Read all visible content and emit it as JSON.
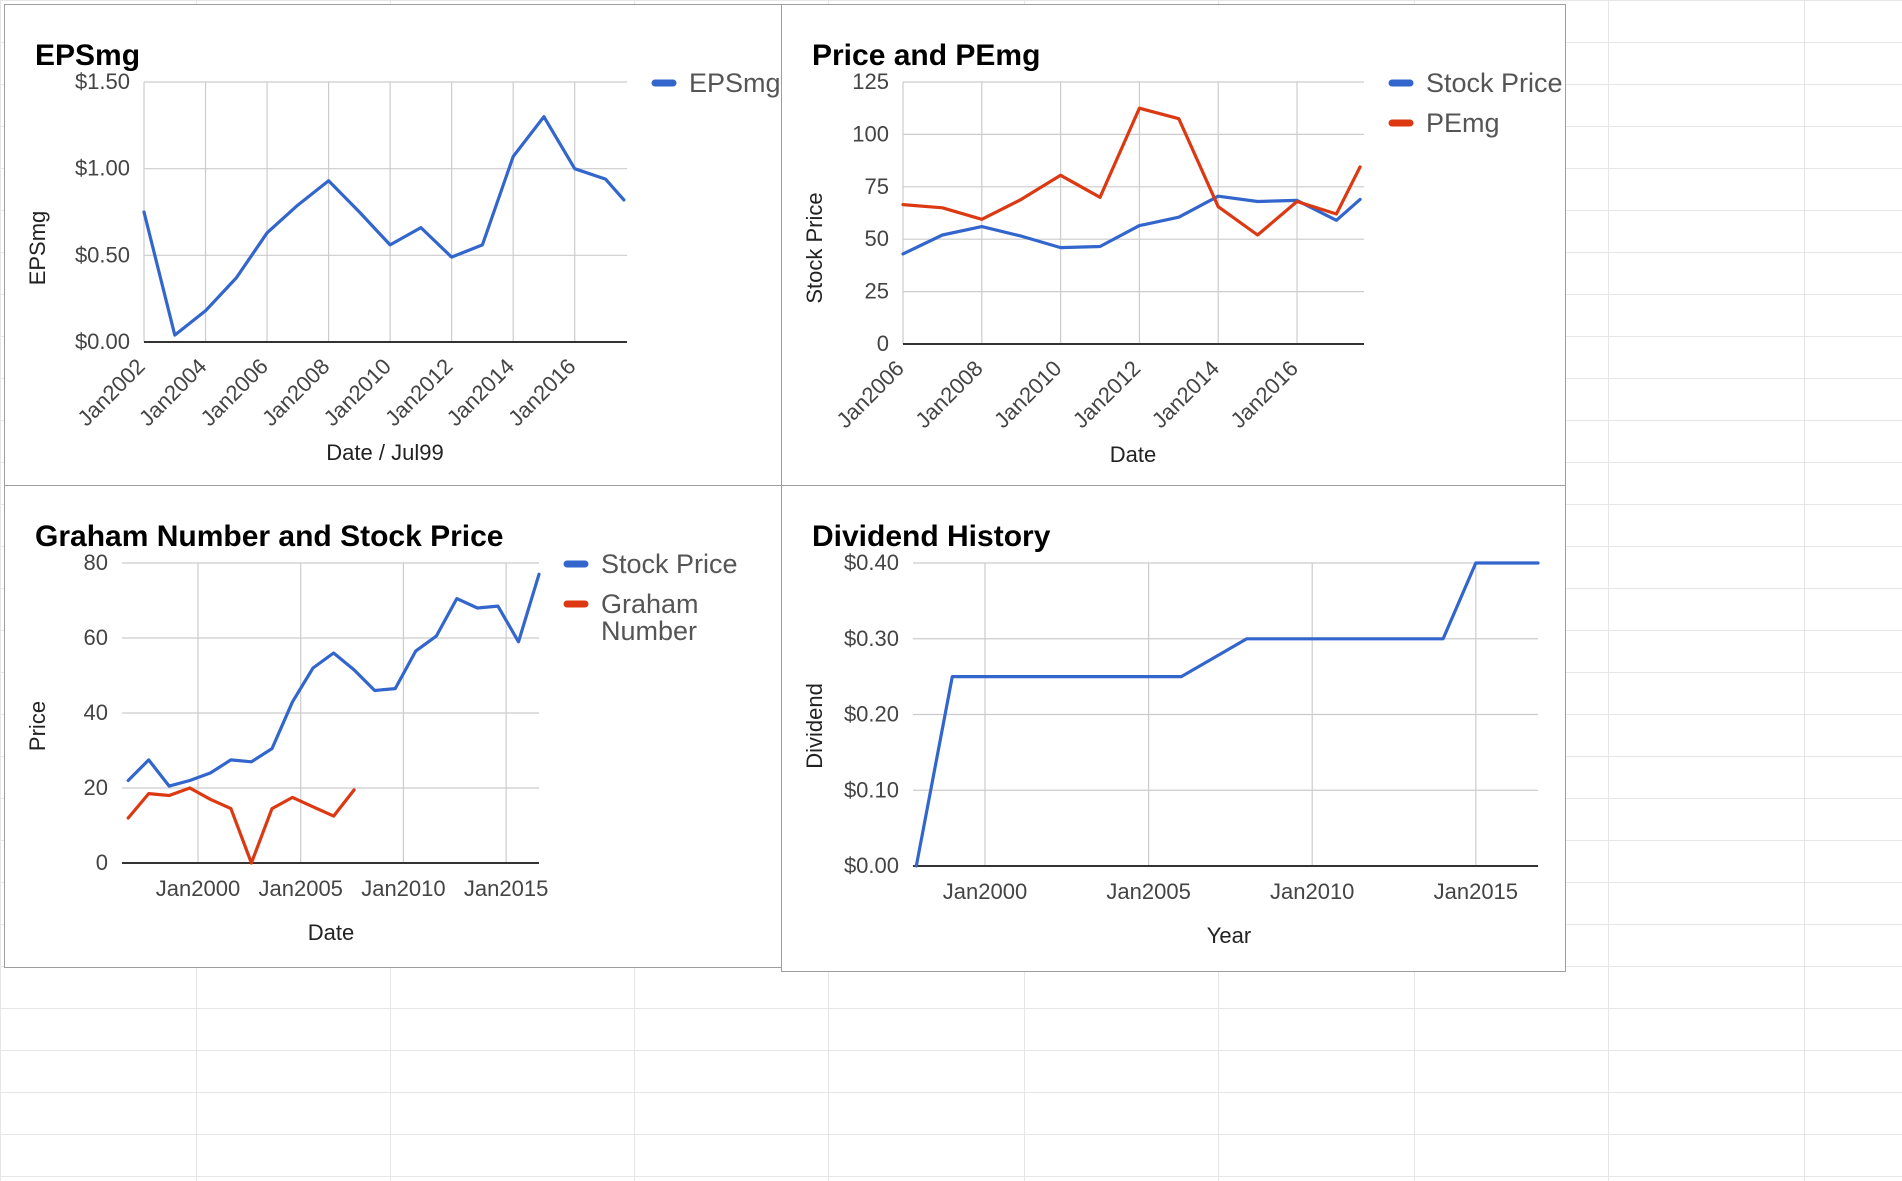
{
  "chart_data": [
    {
      "id": "epsmg",
      "type": "line",
      "title": "EPSmg",
      "xlabel": "Date / Jul99",
      "ylabel": "EPSmg",
      "x_ticks": [
        "Jan2002",
        "Jan2004",
        "Jan2006",
        "Jan2008",
        "Jan2010",
        "Jan2012",
        "Jan2014",
        "Jan2016"
      ],
      "y_ticks": [
        "$0.00",
        "$0.50",
        "$1.00",
        "$1.50"
      ],
      "ylim": [
        0,
        1.5
      ],
      "xlim": [
        2002,
        2017.7
      ],
      "grid": true,
      "legend_position": "right",
      "colors": [
        "#3366cc"
      ],
      "series": [
        {
          "name": "EPSmg",
          "x": [
            2002,
            2003,
            2004,
            2005,
            2006,
            2007,
            2008,
            2009,
            2010,
            2011,
            2012,
            2013,
            2014,
            2015,
            2016,
            2017,
            2017.6
          ],
          "values": [
            0.75,
            0.04,
            0.18,
            0.37,
            0.63,
            0.79,
            0.93,
            0.75,
            0.56,
            0.66,
            0.49,
            0.56,
            1.07,
            1.3,
            1.0,
            0.94,
            0.82
          ]
        }
      ]
    },
    {
      "id": "price-pemg",
      "type": "line",
      "title": "Price and PEmg",
      "xlabel": "Date",
      "ylabel": "Stock Price",
      "x_ticks": [
        "Jan2006",
        "Jan2008",
        "Jan2010",
        "Jan2012",
        "Jan2014",
        "Jan2016"
      ],
      "y_ticks": [
        "0",
        "25",
        "50",
        "75",
        "100",
        "125"
      ],
      "ylim": [
        0,
        125
      ],
      "xlim": [
        2006,
        2017.7
      ],
      "grid": true,
      "legend_position": "right",
      "colors": [
        "#3366cc",
        "#dc3912"
      ],
      "series": [
        {
          "name": "Stock Price",
          "x": [
            2006,
            2007,
            2008,
            2009,
            2010,
            2011,
            2012,
            2013,
            2014,
            2015,
            2016,
            2017,
            2017.6
          ],
          "values": [
            43,
            52,
            56,
            51.5,
            46,
            46.5,
            56.5,
            60.5,
            70.5,
            68,
            68.5,
            59,
            69
          ]
        },
        {
          "name": "PEmg",
          "x": [
            2006,
            2007,
            2008,
            2009,
            2010,
            2011,
            2012,
            2013,
            2014,
            2015,
            2016,
            2017,
            2017.6
          ],
          "values": [
            66.5,
            65,
            59.5,
            69,
            80.5,
            70,
            112.5,
            107.5,
            65.5,
            52,
            68,
            62,
            84.5
          ]
        }
      ]
    },
    {
      "id": "graham",
      "type": "line",
      "title": "Graham Number and Stock Price",
      "xlabel": "Date",
      "ylabel": "Price",
      "x_ticks": [
        "Jan2000",
        "Jan2005",
        "Jan2010",
        "Jan2015"
      ],
      "y_ticks": [
        "0",
        "20",
        "40",
        "60",
        "80"
      ],
      "ylim": [
        0,
        80
      ],
      "xlim": [
        1996.3,
        2016.6
      ],
      "grid": true,
      "legend_position": "right",
      "colors": [
        "#3366cc",
        "#dc3912"
      ],
      "series": [
        {
          "name": "Stock Price",
          "x": [
            1996.6,
            1997.6,
            1998.6,
            1999.6,
            2000.6,
            2001.6,
            2002.6,
            2003.6,
            2004.6,
            2005.6,
            2006.6,
            2007.6,
            2008.6,
            2009.6,
            2010.6,
            2011.6,
            2012.6,
            2013.6,
            2014.6,
            2015.6,
            2016.6
          ],
          "values": [
            22,
            27.5,
            20.5,
            22,
            24,
            27.5,
            27,
            30.5,
            43,
            52,
            56,
            51.5,
            46,
            46.5,
            56.5,
            60.5,
            70.5,
            68,
            68.5,
            59,
            77
          ]
        },
        {
          "name": "Graham Number",
          "x": [
            1996.6,
            1997.6,
            1998.6,
            1999.6,
            2000.6,
            2001.6,
            2002.6,
            2003.6,
            2004.6,
            2005.6,
            2006.6,
            2007.6
          ],
          "values": [
            12,
            18.5,
            18,
            20,
            17,
            14.5,
            0,
            14.5,
            17.5,
            15,
            12.5,
            19.5
          ]
        }
      ]
    },
    {
      "id": "dividend",
      "type": "line",
      "title": "Dividend History",
      "xlabel": "Year",
      "ylabel": "Dividend",
      "x_ticks": [
        "Jan2000",
        "Jan2005",
        "Jan2010",
        "Jan2015"
      ],
      "y_ticks": [
        "$0.00",
        "$0.10",
        "$0.20",
        "$0.30",
        "$0.40"
      ],
      "ylim": [
        0,
        0.4
      ],
      "xlim": [
        1997.8,
        2016.9
      ],
      "grid": true,
      "legend_position": "none",
      "colors": [
        "#3366cc"
      ],
      "series": [
        {
          "x": [
            1997.9,
            1999,
            2006,
            2008,
            2014,
            2015,
            2016.9
          ],
          "values": [
            0,
            0.25,
            0.25,
            0.3,
            0.3,
            0.4,
            0.4
          ]
        }
      ]
    }
  ]
}
